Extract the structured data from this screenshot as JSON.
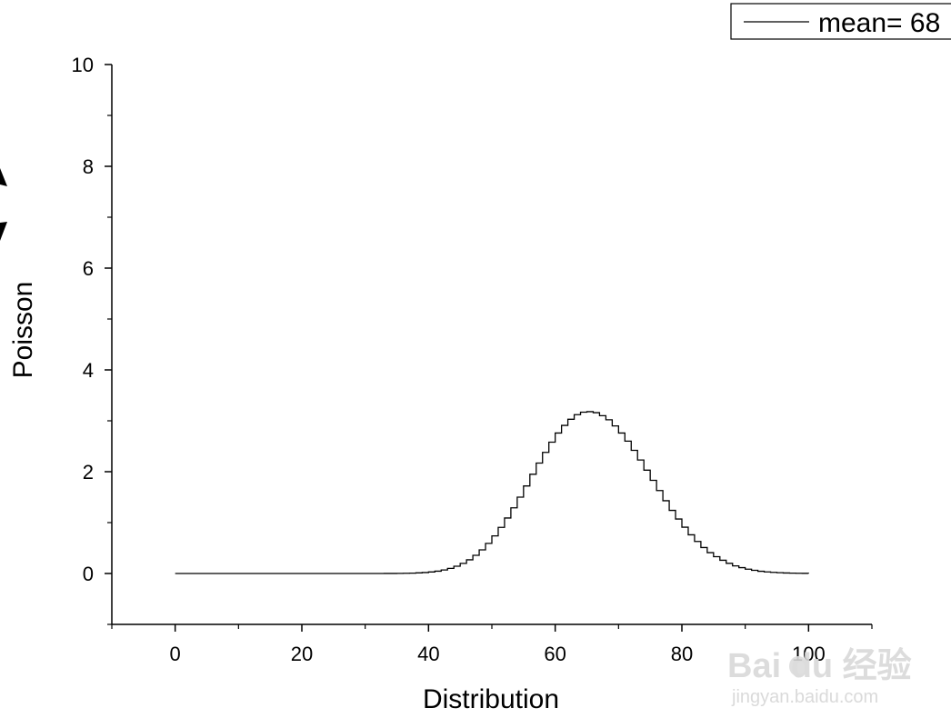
{
  "chart_data": {
    "type": "line",
    "style": "step",
    "xlabel": "Distribution",
    "ylabel": "Poisson",
    "xlim": [
      -10,
      110
    ],
    "ylim": [
      -1,
      10
    ],
    "xticks": [
      0,
      20,
      40,
      60,
      80,
      100
    ],
    "yticks": [
      0,
      2,
      4,
      6,
      8,
      10
    ],
    "grid": false,
    "legend_position": "top-right",
    "series": [
      {
        "name": "mean= 68",
        "color": "#000000",
        "x": [
          0,
          1,
          2,
          3,
          4,
          5,
          6,
          7,
          8,
          9,
          10,
          11,
          12,
          13,
          14,
          15,
          16,
          17,
          18,
          19,
          20,
          21,
          22,
          23,
          24,
          25,
          26,
          27,
          28,
          29,
          30,
          31,
          32,
          33,
          34,
          35,
          36,
          37,
          38,
          39,
          40,
          41,
          42,
          43,
          44,
          45,
          46,
          47,
          48,
          49,
          50,
          51,
          52,
          53,
          54,
          55,
          56,
          57,
          58,
          59,
          60,
          61,
          62,
          63,
          64,
          65,
          66,
          67,
          68,
          69,
          70,
          71,
          72,
          73,
          74,
          75,
          76,
          77,
          78,
          79,
          80,
          81,
          82,
          83,
          84,
          85,
          86,
          87,
          88,
          89,
          90,
          91,
          92,
          93,
          94,
          95,
          96,
          97,
          98,
          99,
          100
        ],
        "y": [
          0,
          0,
          0,
          0,
          0,
          0,
          0,
          0,
          0,
          0,
          0,
          0,
          0,
          0,
          0,
          0,
          0,
          0,
          0,
          0,
          0,
          0,
          0,
          0,
          0,
          0,
          0,
          0,
          0,
          0,
          0,
          0,
          0,
          0.001,
          0.001,
          0.002,
          0.004,
          0.007,
          0.012,
          0.019,
          0.03,
          0.046,
          0.069,
          0.101,
          0.143,
          0.198,
          0.269,
          0.357,
          0.464,
          0.591,
          0.739,
          0.906,
          1.09,
          1.29,
          1.5,
          1.72,
          1.95,
          2.17,
          2.38,
          2.58,
          2.76,
          2.91,
          3.03,
          3.12,
          3.17,
          3.18,
          3.16,
          3.1,
          3.02,
          2.9,
          2.76,
          2.6,
          2.42,
          2.23,
          2.03,
          1.83,
          1.63,
          1.43,
          1.24,
          1.07,
          0.91,
          0.76,
          0.63,
          0.51,
          0.41,
          0.33,
          0.26,
          0.2,
          0.15,
          0.115,
          0.085,
          0.062,
          0.044,
          0.031,
          0.022,
          0.015,
          0.01,
          0.007,
          0.005,
          0.003,
          0.002
        ]
      }
    ]
  },
  "watermark": {
    "brand": "Bai du 经验",
    "url": "jingyan.baidu.com"
  }
}
